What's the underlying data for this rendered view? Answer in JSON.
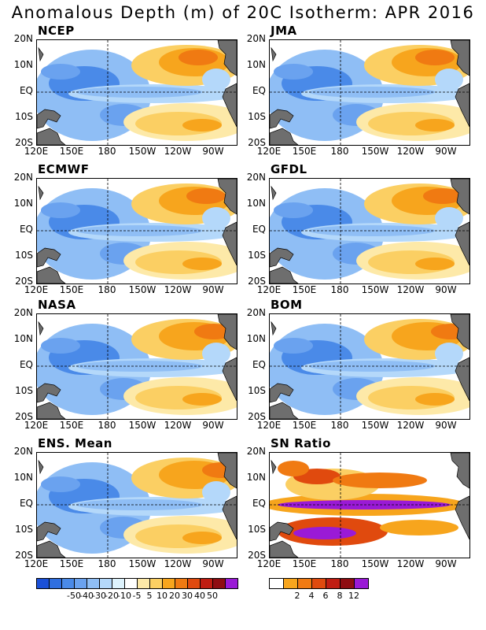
{
  "title": "Anomalous Depth (m) of 20C Isotherm: APR 2016",
  "panels": [
    {
      "name": "NCEP"
    },
    {
      "name": "JMA"
    },
    {
      "name": "ECMWF"
    },
    {
      "name": "GFDL"
    },
    {
      "name": "NASA"
    },
    {
      "name": "BOM"
    },
    {
      "name": "ENS. Mean"
    },
    {
      "name": "SN Ratio"
    }
  ],
  "axes": {
    "lat_labels": [
      "20N",
      "10N",
      "EQ",
      "10S",
      "20S"
    ],
    "lon_labels": [
      "120E",
      "150E",
      "180",
      "150W",
      "120W",
      "90W"
    ]
  },
  "colorbars": {
    "anomaly": {
      "labels": [
        "-50",
        "-40",
        "-30",
        "-20",
        "-10",
        "-5",
        "5",
        "10",
        "20",
        "30",
        "40",
        "50"
      ],
      "colors": [
        "#1a50d8",
        "#2f6fe0",
        "#4a8ae8",
        "#6aa2ef",
        "#8fbef5",
        "#b4d8fa",
        "#def3fd",
        "#ffffff",
        "#fde9a8",
        "#fbcf63",
        "#f7a51d",
        "#f07a12",
        "#e04a0e",
        "#c01d12",
        "#8f0d12",
        "#9a1ad6"
      ]
    },
    "sn_ratio": {
      "labels": [
        "2",
        "4",
        "6",
        "8",
        "12"
      ],
      "colors": [
        "#ffffff",
        "#f7a51d",
        "#f07a12",
        "#e04a0e",
        "#c01d12",
        "#8f0d12",
        "#9a1ad6"
      ]
    }
  },
  "colors": {
    "land": "#6e6e6e",
    "neg_light": "#b4d8fa",
    "neg_mid": "#8fbef5",
    "neg_med": "#6aa2ef",
    "neg_dark": "#4a8ae8",
    "pos_light": "#fde9a8",
    "pos_mid": "#fbcf63",
    "pos_med": "#f7a51d",
    "pos_dark": "#f07a12",
    "pos_red": "#e04a0e",
    "pos_darkred": "#c01d12",
    "purple": "#9a1ad6"
  }
}
